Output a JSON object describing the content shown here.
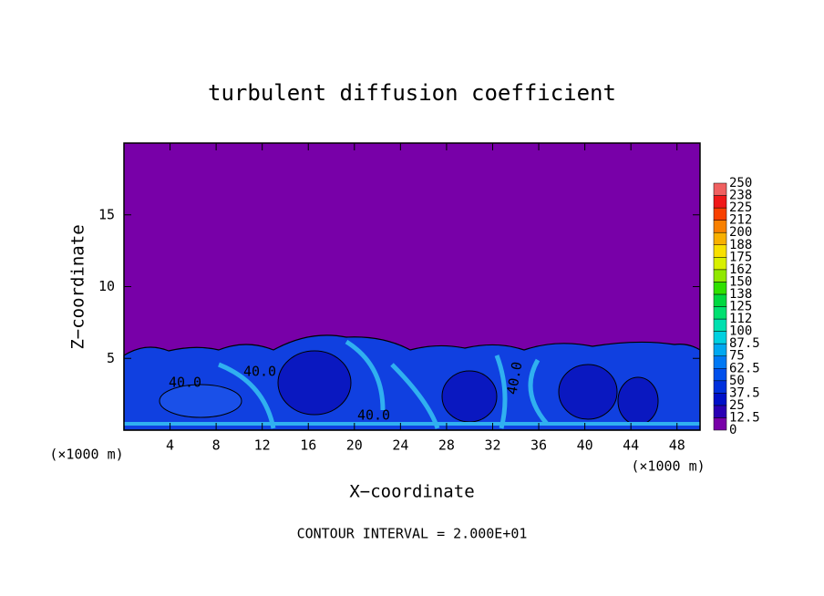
{
  "chart_data": {
    "type": "contour",
    "title": "turbulent diffusion coefficient",
    "xlabel": "X−coordinate",
    "ylabel": "Z−coordinate",
    "x_unit": "(×1000 m)",
    "y_unit": "(×1000 m)",
    "annotation": "CONTOUR INTERVAL = 2.000E+01",
    "contour_labels": [
      "40.0",
      "40.0",
      "40.0",
      "40.0"
    ],
    "xlim": [
      0,
      50
    ],
    "xticks": [
      4,
      8,
      12,
      16,
      20,
      24,
      28,
      32,
      36,
      40,
      44,
      48
    ],
    "ylim": [
      0,
      20
    ],
    "yticks": [
      5,
      10,
      15
    ],
    "levels": [
      0,
      12.5,
      25,
      37.5,
      50,
      62.5,
      75,
      87.5,
      100,
      112,
      125,
      138,
      150,
      162,
      175,
      188,
      200,
      212,
      225,
      238,
      250
    ],
    "colors": [
      "#7800a8",
      "#2a00b4",
      "#0010c8",
      "#0030dc",
      "#0050ec",
      "#0078f4",
      "#00a8f0",
      "#00d0e0",
      "#00e0b0",
      "#00e070",
      "#00d840",
      "#30e000",
      "#90e800",
      "#d8f000",
      "#f8e000",
      "#f8b000",
      "#f88000",
      "#f84000",
      "#f01818",
      "#f06060"
    ]
  }
}
